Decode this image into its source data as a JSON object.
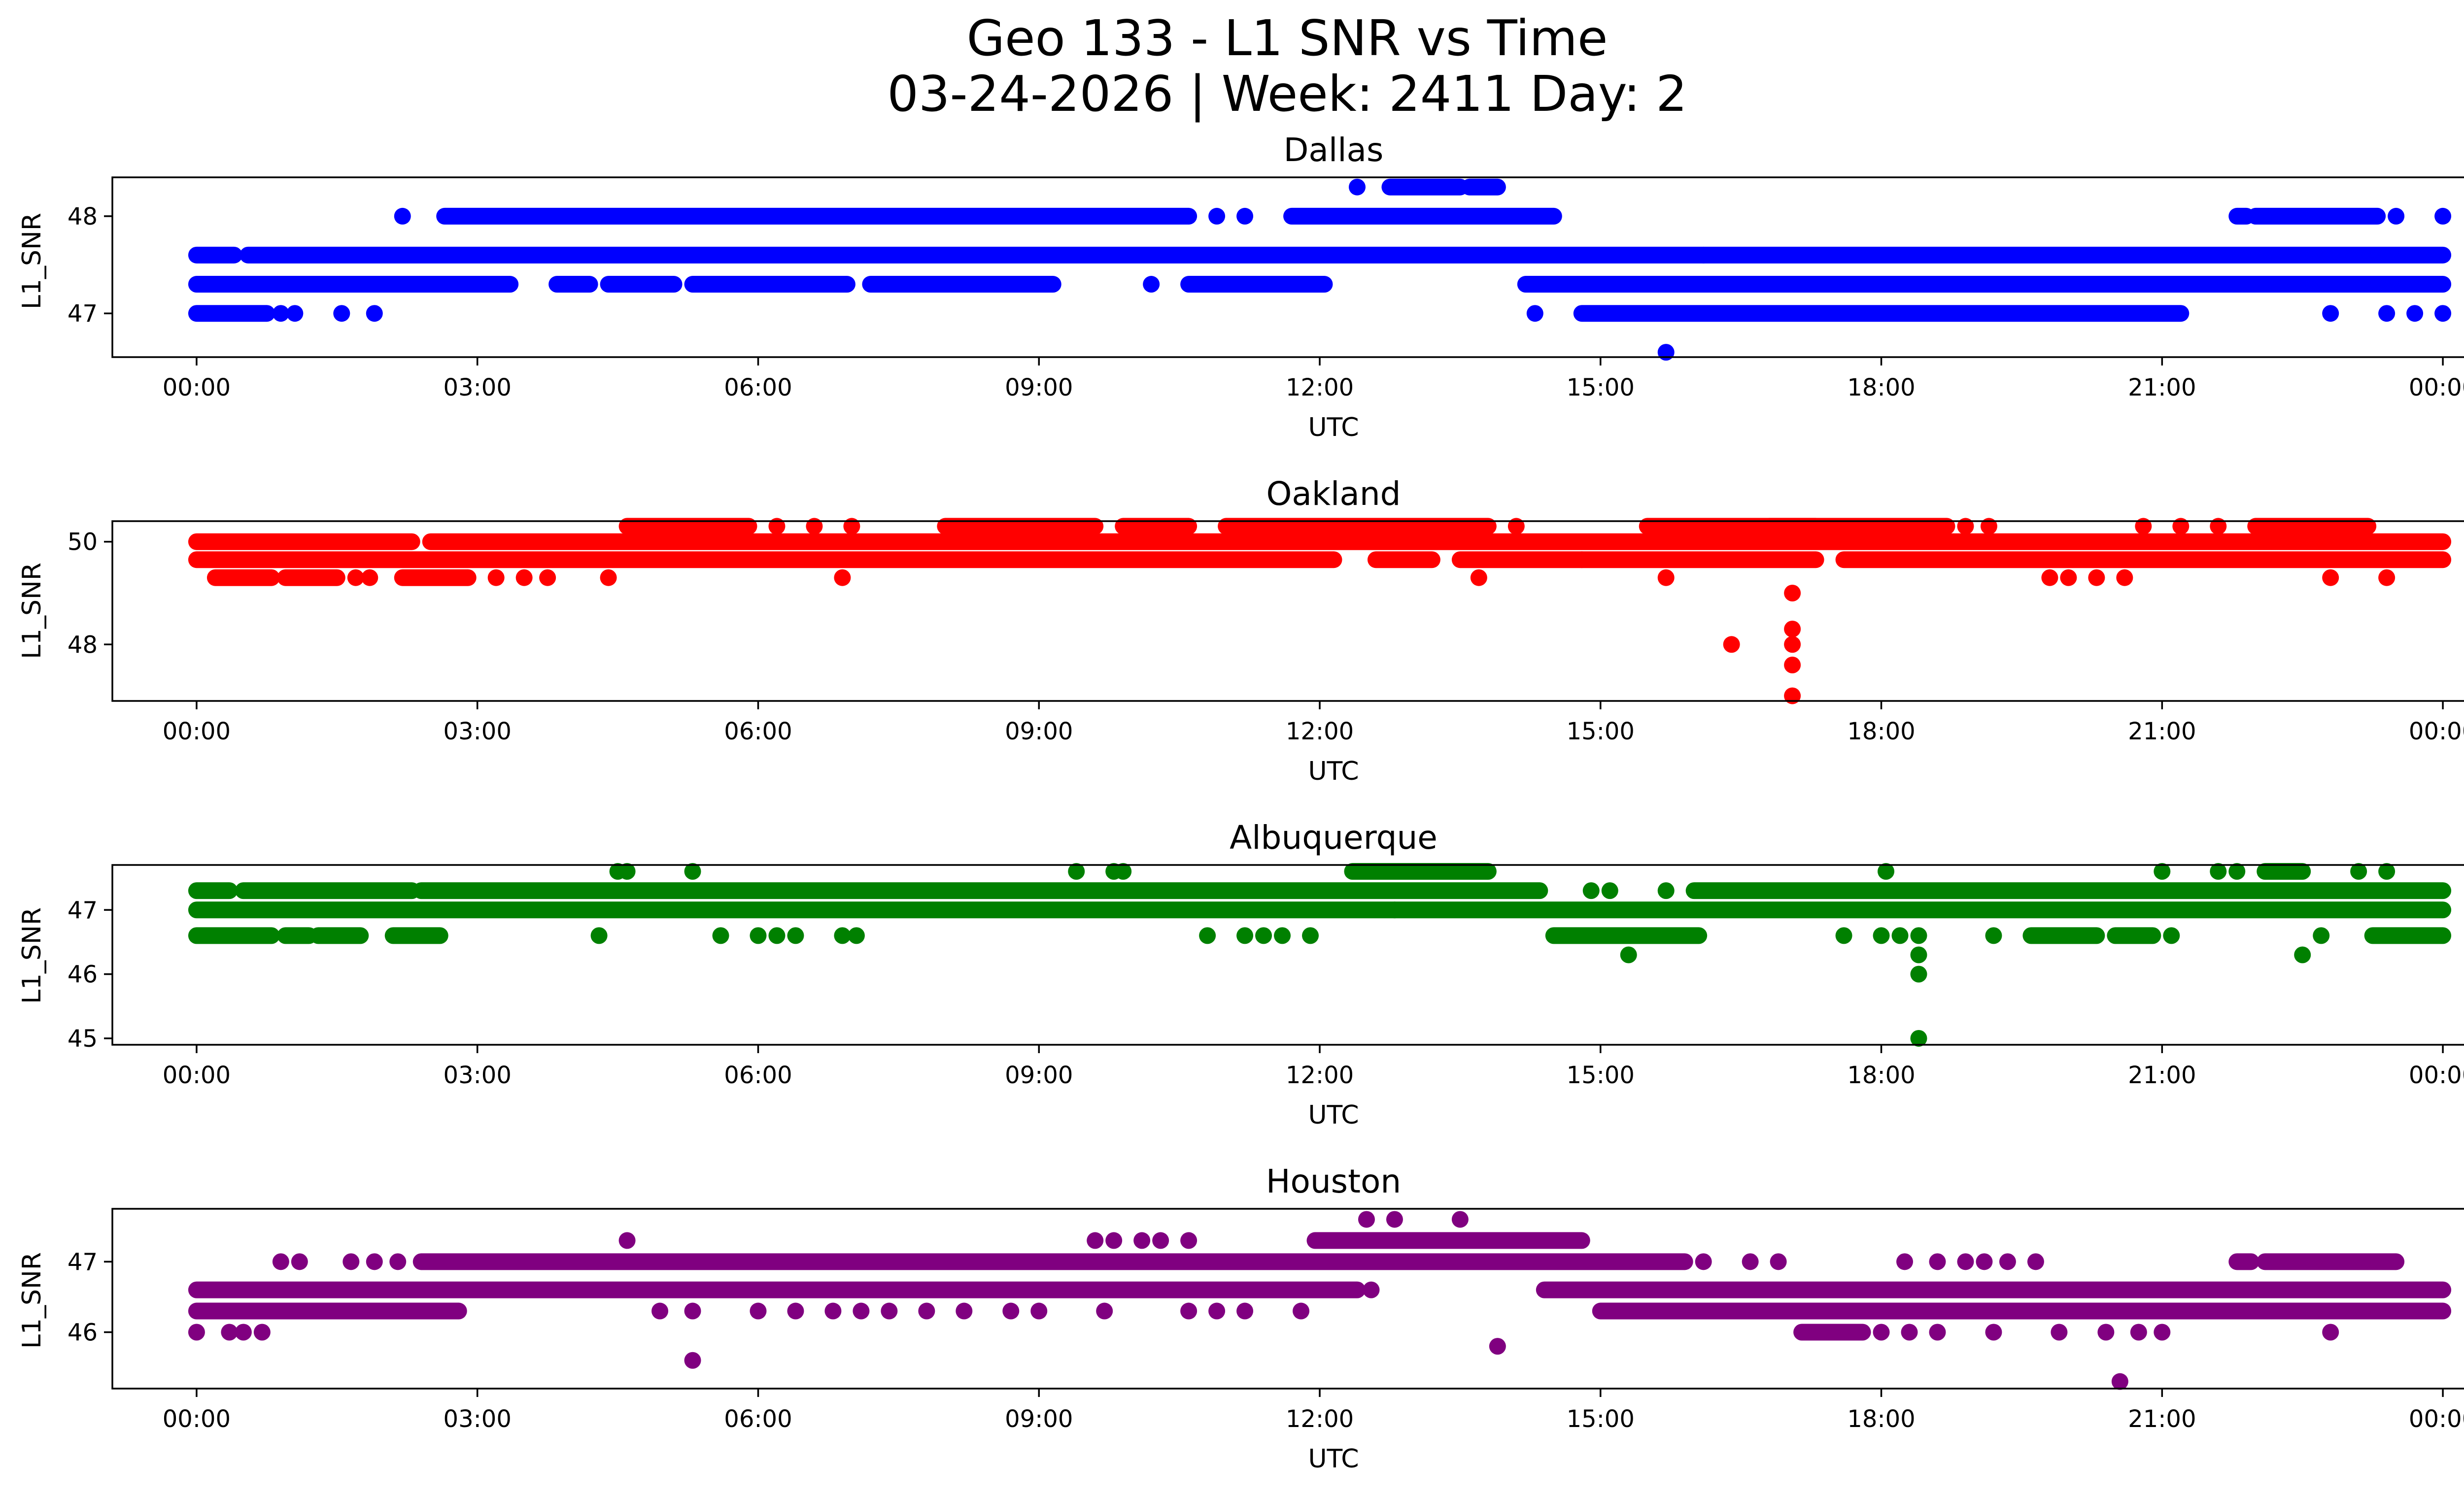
{
  "chart_data": {
    "type": "scatter",
    "title_line1": "Geo 133 - L1 SNR vs Time",
    "title_line2": "03-24-2026 | Week: 2411 Day: 2",
    "xlabel": "UTC",
    "ylabel": "L1_SNR",
    "xlim": [
      -0.9,
      25.2
    ],
    "x_tick_values": [
      0,
      3,
      6,
      9,
      12,
      15,
      18,
      21,
      24
    ],
    "x_tick_labels": [
      "00:00",
      "03:00",
      "06:00",
      "09:00",
      "12:00",
      "15:00",
      "18:00",
      "21:00",
      "00:00"
    ],
    "grid": false,
    "panels": [
      {
        "subtitle": "Dallas",
        "color": "#0000ff",
        "ylim": [
          46.55,
          48.4
        ],
        "y_ticks": [
          47,
          48
        ],
        "y_tick_labels": [
          "47",
          "48"
        ],
        "series": [
          {
            "level": 47.6,
            "spans": [
              [
                0,
                0.4
              ],
              [
                0.55,
                24
              ]
            ]
          },
          {
            "level": 47.3,
            "spans": [
              [
                0,
                3.35
              ],
              [
                3.85,
                4.2
              ],
              [
                4.4,
                5.1
              ],
              [
                5.3,
                6.95
              ],
              [
                7.2,
                9.15
              ],
              [
                10.6,
                12.05
              ],
              [
                14.2,
                24
              ]
            ]
          },
          {
            "level": 48.0,
            "spans": [
              [
                2.65,
                10.6
              ],
              [
                11.7,
                14.5
              ],
              [
                21.8,
                21.9
              ],
              [
                22.0,
                23.3
              ]
            ]
          },
          {
            "level": 47.0,
            "spans": [
              [
                0,
                0.75
              ],
              [
                14.8,
                21.2
              ]
            ]
          },
          {
            "level": 48.3,
            "spans": [
              [
                12.75,
                13.5
              ],
              [
                13.6,
                13.9
              ]
            ]
          }
        ],
        "points": [
          {
            "x": 12.4,
            "y": 48.3
          },
          {
            "x": 15.7,
            "y": 46.6
          },
          {
            "x": 2.2,
            "y": 48.0
          },
          {
            "x": 23.5,
            "y": 48.0
          },
          {
            "x": 24.0,
            "y": 48.0
          },
          {
            "x": 0.9,
            "y": 47.0
          },
          {
            "x": 1.05,
            "y": 47.0
          },
          {
            "x": 1.55,
            "y": 47.0
          },
          {
            "x": 1.9,
            "y": 47.0
          },
          {
            "x": 14.3,
            "y": 47.0
          },
          {
            "x": 22.8,
            "y": 47.0
          },
          {
            "x": 23.4,
            "y": 47.0
          },
          {
            "x": 23.7,
            "y": 47.0
          },
          {
            "x": 24.0,
            "y": 47.0
          },
          {
            "x": 10.9,
            "y": 48.0
          },
          {
            "x": 11.2,
            "y": 48.0
          },
          {
            "x": 10.2,
            "y": 47.3
          },
          {
            "x": 16.1,
            "y": 47.6
          }
        ]
      },
      {
        "subtitle": "Oakland",
        "color": "#ff0000",
        "ylim": [
          46.9,
          50.4
        ],
        "y_ticks": [
          48,
          50
        ],
        "y_tick_labels": [
          "48",
          "50"
        ],
        "series": [
          {
            "level": 50.0,
            "spans": [
              [
                0,
                2.3
              ],
              [
                2.5,
                24
              ]
            ]
          },
          {
            "level": 49.65,
            "spans": [
              [
                0,
                12.15
              ],
              [
                12.6,
                13.2
              ],
              [
                13.5,
                17.3
              ],
              [
                17.6,
                24
              ]
            ]
          },
          {
            "level": 50.3,
            "spans": [
              [
                4.6,
                5.9
              ],
              [
                8.0,
                9.6
              ],
              [
                9.9,
                10.6
              ],
              [
                11.0,
                13.8
              ],
              [
                15.5,
                17.3
              ],
              [
                16.8,
                18.7
              ],
              [
                22.0,
                23.2
              ]
            ]
          },
          {
            "level": 49.3,
            "spans": [
              [
                0.2,
                0.8
              ],
              [
                0.95,
                1.5
              ],
              [
                2.2,
                2.9
              ]
            ]
          }
        ],
        "points": [
          {
            "x": 1.7,
            "y": 49.3
          },
          {
            "x": 1.85,
            "y": 49.3
          },
          {
            "x": 3.2,
            "y": 49.3
          },
          {
            "x": 3.5,
            "y": 49.3
          },
          {
            "x": 3.75,
            "y": 49.3
          },
          {
            "x": 4.4,
            "y": 49.3
          },
          {
            "x": 6.9,
            "y": 49.3
          },
          {
            "x": 13.7,
            "y": 49.3
          },
          {
            "x": 15.7,
            "y": 49.3
          },
          {
            "x": 19.8,
            "y": 49.3
          },
          {
            "x": 20.0,
            "y": 49.3
          },
          {
            "x": 20.3,
            "y": 49.3
          },
          {
            "x": 20.6,
            "y": 49.3
          },
          {
            "x": 22.8,
            "y": 49.3
          },
          {
            "x": 23.4,
            "y": 49.3
          },
          {
            "x": 17.05,
            "y": 49.0
          },
          {
            "x": 17.05,
            "y": 48.3
          },
          {
            "x": 17.05,
            "y": 48.0
          },
          {
            "x": 17.05,
            "y": 47.6
          },
          {
            "x": 17.05,
            "y": 47.0
          },
          {
            "x": 16.4,
            "y": 48.0
          },
          {
            "x": 6.2,
            "y": 50.3
          },
          {
            "x": 6.6,
            "y": 50.3
          },
          {
            "x": 7.0,
            "y": 50.3
          },
          {
            "x": 14.1,
            "y": 50.3
          },
          {
            "x": 19.15,
            "y": 50.3
          },
          {
            "x": 20.8,
            "y": 50.3
          },
          {
            "x": 21.2,
            "y": 50.3
          },
          {
            "x": 21.6,
            "y": 50.3
          },
          {
            "x": 18.9,
            "y": 50.3
          },
          {
            "x": 14.8,
            "y": 49.65
          }
        ]
      },
      {
        "subtitle": "Albuquerque",
        "color": "#008000",
        "ylim": [
          44.9,
          47.7
        ],
        "y_ticks": [
          45,
          46,
          47
        ],
        "y_tick_labels": [
          "45",
          "46",
          "47"
        ],
        "series": [
          {
            "level": 47.0,
            "spans": [
              [
                0,
                24
              ]
            ]
          },
          {
            "level": 47.3,
            "spans": [
              [
                0,
                0.35
              ],
              [
                0.5,
                2.3
              ],
              [
                2.4,
                14.35
              ],
              [
                16.0,
                24
              ]
            ]
          },
          {
            "level": 46.6,
            "spans": [
              [
                0,
                0.8
              ],
              [
                0.95,
                1.2
              ],
              [
                1.3,
                1.75
              ],
              [
                2.1,
                2.6
              ],
              [
                14.5,
                16.05
              ],
              [
                19.6,
                20.3
              ],
              [
                20.5,
                20.9
              ],
              [
                23.25,
                24
              ]
            ]
          },
          {
            "level": 47.6,
            "spans": [
              [
                12.35,
                13.8
              ],
              [
                22.1,
                22.5
              ]
            ]
          }
        ],
        "points": [
          {
            "x": 4.5,
            "y": 47.6
          },
          {
            "x": 4.6,
            "y": 47.6
          },
          {
            "x": 5.3,
            "y": 47.6
          },
          {
            "x": 9.4,
            "y": 47.6
          },
          {
            "x": 9.8,
            "y": 47.6
          },
          {
            "x": 9.9,
            "y": 47.6
          },
          {
            "x": 18.05,
            "y": 47.6
          },
          {
            "x": 21.0,
            "y": 47.6
          },
          {
            "x": 21.6,
            "y": 47.6
          },
          {
            "x": 21.8,
            "y": 47.6
          },
          {
            "x": 23.1,
            "y": 47.6
          },
          {
            "x": 23.4,
            "y": 47.6
          },
          {
            "x": 4.3,
            "y": 46.6
          },
          {
            "x": 5.6,
            "y": 46.6
          },
          {
            "x": 6.0,
            "y": 46.6
          },
          {
            "x": 6.2,
            "y": 46.6
          },
          {
            "x": 6.4,
            "y": 46.6
          },
          {
            "x": 6.9,
            "y": 46.6
          },
          {
            "x": 7.05,
            "y": 46.6
          },
          {
            "x": 10.8,
            "y": 46.6
          },
          {
            "x": 11.2,
            "y": 46.6
          },
          {
            "x": 11.4,
            "y": 46.6
          },
          {
            "x": 11.6,
            "y": 46.6
          },
          {
            "x": 11.9,
            "y": 46.6
          },
          {
            "x": 17.6,
            "y": 46.6
          },
          {
            "x": 18.0,
            "y": 46.6
          },
          {
            "x": 18.2,
            "y": 46.6
          },
          {
            "x": 19.2,
            "y": 46.6
          },
          {
            "x": 21.1,
            "y": 46.6
          },
          {
            "x": 22.7,
            "y": 46.6
          },
          {
            "x": 18.4,
            "y": 46.6
          },
          {
            "x": 18.4,
            "y": 46.3
          },
          {
            "x": 18.4,
            "y": 46.0
          },
          {
            "x": 18.4,
            "y": 45.0
          },
          {
            "x": 15.3,
            "y": 46.3
          },
          {
            "x": 22.5,
            "y": 46.3
          },
          {
            "x": 12.8,
            "y": 47.0
          },
          {
            "x": 14.9,
            "y": 47.3
          },
          {
            "x": 15.1,
            "y": 47.3
          },
          {
            "x": 15.7,
            "y": 47.3
          }
        ]
      },
      {
        "subtitle": "Houston",
        "color": "#800080",
        "ylim": [
          45.2,
          47.75
        ],
        "y_ticks": [
          46,
          47
        ],
        "y_tick_labels": [
          "46",
          "47"
        ],
        "series": [
          {
            "level": 46.6,
            "spans": [
              [
                0,
                12.4
              ],
              [
                14.4,
                24
              ]
            ]
          },
          {
            "level": 46.3,
            "spans": [
              [
                0,
                2.8
              ],
              [
                15.0,
                24
              ]
            ]
          },
          {
            "level": 47.0,
            "spans": [
              [
                2.4,
                15.9
              ],
              [
                21.8,
                21.95
              ],
              [
                22.1,
                23.5
              ]
            ]
          },
          {
            "level": 47.3,
            "spans": [
              [
                11.95,
                14.8
              ]
            ]
          },
          {
            "level": 46.0,
            "spans": [
              [
                17.15,
                17.8
              ]
            ]
          }
        ],
        "points": [
          {
            "x": 0.0,
            "y": 46.0
          },
          {
            "x": 0.35,
            "y": 46.0
          },
          {
            "x": 0.5,
            "y": 46.0
          },
          {
            "x": 0.7,
            "y": 46.0
          },
          {
            "x": 0.9,
            "y": 47.0
          },
          {
            "x": 1.1,
            "y": 47.0
          },
          {
            "x": 1.65,
            "y": 47.0
          },
          {
            "x": 1.9,
            "y": 47.0
          },
          {
            "x": 2.15,
            "y": 47.0
          },
          {
            "x": 4.6,
            "y": 47.3
          },
          {
            "x": 5.3,
            "y": 45.6
          },
          {
            "x": 4.95,
            "y": 46.3
          },
          {
            "x": 5.3,
            "y": 46.3
          },
          {
            "x": 6.0,
            "y": 46.3
          },
          {
            "x": 6.4,
            "y": 46.3
          },
          {
            "x": 6.8,
            "y": 46.3
          },
          {
            "x": 7.1,
            "y": 46.3
          },
          {
            "x": 7.4,
            "y": 46.3
          },
          {
            "x": 7.8,
            "y": 46.3
          },
          {
            "x": 8.2,
            "y": 46.3
          },
          {
            "x": 8.7,
            "y": 46.3
          },
          {
            "x": 9.0,
            "y": 46.3
          },
          {
            "x": 9.7,
            "y": 46.3
          },
          {
            "x": 10.6,
            "y": 46.3
          },
          {
            "x": 10.9,
            "y": 46.3
          },
          {
            "x": 11.2,
            "y": 46.3
          },
          {
            "x": 11.8,
            "y": 46.3
          },
          {
            "x": 9.6,
            "y": 47.3
          },
          {
            "x": 9.8,
            "y": 47.3
          },
          {
            "x": 10.1,
            "y": 47.3
          },
          {
            "x": 10.3,
            "y": 47.3
          },
          {
            "x": 10.6,
            "y": 47.3
          },
          {
            "x": 12.55,
            "y": 46.6
          },
          {
            "x": 12.5,
            "y": 47.6
          },
          {
            "x": 12.8,
            "y": 47.6
          },
          {
            "x": 13.5,
            "y": 47.6
          },
          {
            "x": 13.9,
            "y": 45.8
          },
          {
            "x": 16.1,
            "y": 47.0
          },
          {
            "x": 16.6,
            "y": 47.0
          },
          {
            "x": 16.9,
            "y": 47.0
          },
          {
            "x": 18.25,
            "y": 47.0
          },
          {
            "x": 18.6,
            "y": 47.0
          },
          {
            "x": 18.9,
            "y": 47.0
          },
          {
            "x": 19.1,
            "y": 47.0
          },
          {
            "x": 19.35,
            "y": 47.0
          },
          {
            "x": 19.65,
            "y": 47.0
          },
          {
            "x": 18.0,
            "y": 46.0
          },
          {
            "x": 18.3,
            "y": 46.0
          },
          {
            "x": 18.6,
            "y": 46.0
          },
          {
            "x": 19.2,
            "y": 46.0
          },
          {
            "x": 19.9,
            "y": 46.0
          },
          {
            "x": 20.4,
            "y": 46.0
          },
          {
            "x": 20.75,
            "y": 46.0
          },
          {
            "x": 21.0,
            "y": 46.0
          },
          {
            "x": 22.8,
            "y": 46.0
          },
          {
            "x": 20.55,
            "y": 45.3
          }
        ]
      }
    ]
  }
}
